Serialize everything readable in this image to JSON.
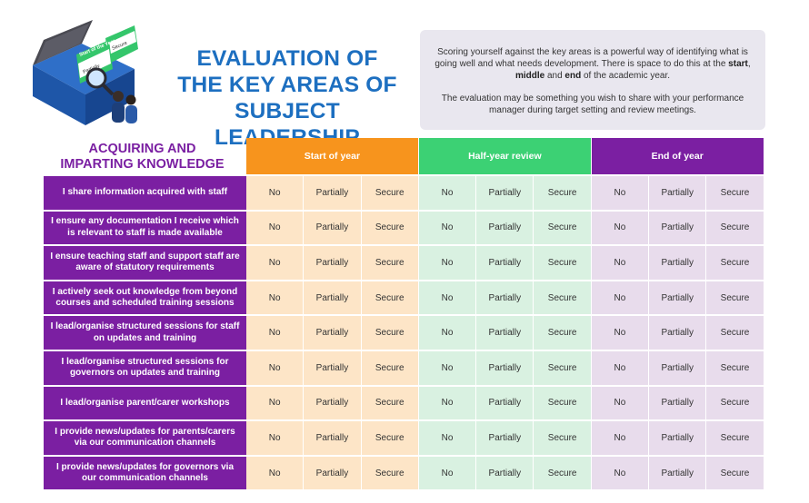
{
  "illustration": {
    "card_front": "Start of the Year",
    "card_middle": "Partially",
    "card_back": "End of the Year",
    "card_secure": "Secure"
  },
  "title": {
    "line1": "EVALUATION OF",
    "line2": "THE KEY AREAS OF",
    "line3": "SUBJECT LEADERSHIP"
  },
  "intro": {
    "p1_a": "Scoring yourself against the key areas is a powerful way of identifying what is going well and what needs development. There is space to do this at the ",
    "p1_start": "start",
    "p1_sep1": ", ",
    "p1_middle": "middle",
    "p1_sep2": " and ",
    "p1_end": "end",
    "p1_b": " of the academic year.",
    "p2": "The evaluation may be something you wish to share with your performance manager during target setting and review meetings."
  },
  "section": {
    "line1": "ACQUIRING AND",
    "line2": "IMPARTING KNOWLEDGE"
  },
  "phases": [
    "Start of year",
    "Half-year review",
    "End of year"
  ],
  "options": [
    "No",
    "Partially",
    "Secure"
  ],
  "rows": [
    "I share information acquired with staff",
    "I ensure any documentation I receive which is relevant to staff is made available",
    "I ensure teaching staff and support staff are aware of statutory requirements",
    "I actively seek out knowledge from beyond courses and scheduled training sessions",
    "I lead/organise structured sessions for staff on updates and training",
    "I lead/organise structured sessions for governors on updates and training",
    "I lead/organise parent/carer workshops",
    "I provide news/updates for parents/carers via our communication channels",
    "I provide news/updates for governors via our communication channels"
  ],
  "colors": {
    "title_blue": "#1d6fc0",
    "purple": "#7b1fa2",
    "orange": "#f7941d",
    "green": "#3cd174"
  }
}
